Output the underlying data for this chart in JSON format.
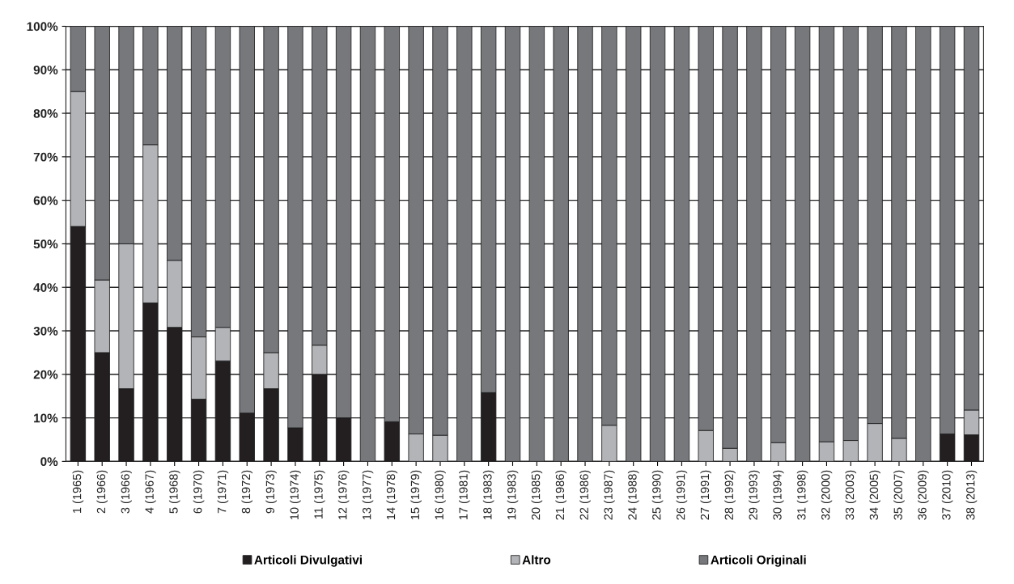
{
  "chart_data": {
    "type": "bar",
    "stacked": true,
    "categories": [
      "1 (1965)",
      "2 (1966)",
      "3 (1966)",
      "4 (1967)",
      "5 (1968)",
      "6 (1970)",
      "7 (1971)",
      "8 (1972)",
      "9 (1973)",
      "10 (1974)",
      "11 (1975)",
      "12 (1976)",
      "13 (1977)",
      "14 (1978)",
      "15 (1979)",
      "16 (1980)",
      "17 (1981)",
      "18 (1983)",
      "19 (1983)",
      "20 (1985)",
      "21 (1986)",
      "22 (1986)",
      "23 (1987)",
      "24 (1988)",
      "25 (1990)",
      "26 (1991)",
      "27 (1991)",
      "28 (1992)",
      "29 (1993)",
      "30 (1994)",
      "31 (1998)",
      "32 (2000)",
      "33 (2003)",
      "34 (2005)",
      "35 (2007)",
      "36 (2009)",
      "37 (2010)",
      "38 (2013)"
    ],
    "series": [
      {
        "name": "Articoli Divulgativi",
        "color": "#231f20",
        "values": [
          54,
          25,
          16.7,
          36.4,
          30.8,
          14.3,
          23.1,
          11.1,
          16.7,
          7.7,
          20,
          10,
          0,
          9.1,
          0,
          0,
          0,
          15.8,
          0,
          0,
          0,
          0,
          0,
          0,
          0,
          0,
          0,
          0,
          0,
          0,
          0,
          0,
          0,
          0,
          0,
          0,
          6.3,
          6.1
        ]
      },
      {
        "name": "Altro",
        "color": "#b3b4b8",
        "values": [
          31,
          16.7,
          33.3,
          36.4,
          15.4,
          14.3,
          7.7,
          0,
          8.3,
          0,
          6.7,
          0,
          0,
          0,
          6.3,
          6,
          0,
          0,
          0,
          0,
          0,
          0,
          8.3,
          0,
          0,
          0,
          7.1,
          3,
          0,
          4.3,
          0,
          4.5,
          4.8,
          8.7,
          5.3,
          0,
          0,
          5.7
        ]
      },
      {
        "name": "Articoli Originali",
        "color": "#77787c",
        "values": [
          15,
          58.3,
          50,
          27.2,
          53.8,
          71.4,
          69.2,
          88.9,
          75,
          92.3,
          73.3,
          90,
          100,
          90.9,
          93.7,
          94,
          100,
          84.2,
          100,
          100,
          100,
          100,
          91.7,
          100,
          100,
          100,
          92.9,
          97,
          100,
          95.7,
          100,
          95.5,
          95.2,
          91.3,
          94.7,
          100,
          93.7,
          88.2
        ]
      }
    ],
    "ylim": [
      0,
      100
    ],
    "yticks": [
      {
        "value": 0,
        "label": "0%"
      },
      {
        "value": 10,
        "label": "10%"
      },
      {
        "value": 20,
        "label": "20%"
      },
      {
        "value": 30,
        "label": "30%"
      },
      {
        "value": 40,
        "label": "40%"
      },
      {
        "value": 50,
        "label": "50%"
      },
      {
        "value": 60,
        "label": "60%"
      },
      {
        "value": 70,
        "label": "70%"
      },
      {
        "value": 80,
        "label": "80%"
      },
      {
        "value": 90,
        "label": "90%"
      },
      {
        "value": 100,
        "label": "100%"
      }
    ],
    "grid": "y",
    "legend": "bottom"
  }
}
